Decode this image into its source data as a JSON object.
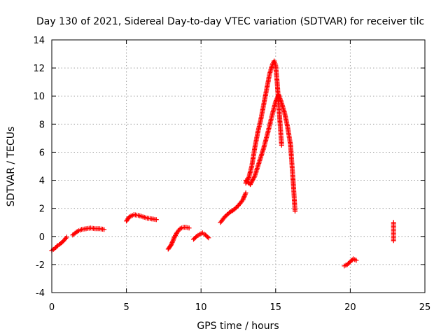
{
  "chart_data": {
    "type": "scatter",
    "title": "Day 130 of 2021, Sidereal Day-to-day VTEC variation (SDTVAR) for receiver tilc",
    "xlabel": "GPS time / hours",
    "ylabel": "SDTVAR / TECUs",
    "xlim": [
      0,
      25
    ],
    "ylim": [
      -4,
      14
    ],
    "x_ticks": [
      0,
      5,
      10,
      15,
      20,
      25
    ],
    "y_ticks": [
      -4,
      -2,
      0,
      2,
      4,
      6,
      8,
      10,
      12,
      14
    ],
    "grid": true,
    "marker": "plus",
    "color": "#ff0000",
    "segments": [
      {
        "name": "seg1",
        "x": [
          0.0,
          0.2,
          0.4,
          0.6,
          0.8,
          1.0
        ],
        "y": [
          -1.0,
          -0.85,
          -0.65,
          -0.5,
          -0.3,
          -0.05
        ]
      },
      {
        "name": "seg2",
        "x": [
          1.4,
          1.7,
          2.0,
          2.3,
          2.6,
          2.9,
          3.2,
          3.5
        ],
        "y": [
          0.1,
          0.35,
          0.5,
          0.55,
          0.6,
          0.55,
          0.55,
          0.5
        ]
      },
      {
        "name": "seg3",
        "x": [
          5.0,
          5.2,
          5.5,
          5.8,
          6.1,
          6.4,
          6.7,
          7.0
        ],
        "y": [
          1.1,
          1.4,
          1.55,
          1.5,
          1.4,
          1.3,
          1.25,
          1.2
        ]
      },
      {
        "name": "seg4",
        "x": [
          7.8,
          8.0,
          8.2,
          8.4,
          8.6,
          8.8,
          9.0,
          9.2
        ],
        "y": [
          -0.9,
          -0.6,
          -0.1,
          0.3,
          0.55,
          0.65,
          0.65,
          0.6
        ]
      },
      {
        "name": "seg5",
        "x": [
          9.5,
          9.7,
          9.9,
          10.1,
          10.3,
          10.5
        ],
        "y": [
          -0.2,
          0.0,
          0.15,
          0.25,
          0.1,
          -0.1
        ]
      },
      {
        "name": "seg6",
        "x": [
          11.3,
          11.6,
          11.9,
          12.2,
          12.5,
          12.8,
          13.0
        ],
        "y": [
          1.0,
          1.4,
          1.7,
          1.9,
          2.2,
          2.6,
          3.1
        ]
      },
      {
        "name": "seg7",
        "x": [
          13.0,
          13.2,
          13.4,
          13.6,
          13.8,
          14.0,
          14.2,
          14.4,
          14.6,
          14.8,
          14.9,
          15.0,
          15.1,
          15.2,
          15.3,
          15.4
        ],
        "y": [
          3.8,
          4.2,
          5.0,
          6.3,
          7.4,
          8.3,
          9.4,
          10.5,
          11.6,
          12.3,
          12.5,
          12.2,
          11.0,
          9.5,
          8.0,
          6.5
        ]
      },
      {
        "name": "seg8",
        "x": [
          13.0,
          13.3,
          13.6,
          13.9,
          14.2,
          14.5,
          14.8,
          15.0,
          15.2,
          15.4,
          15.6,
          15.8,
          16.0,
          16.1,
          16.2,
          16.3
        ],
        "y": [
          4.0,
          3.7,
          4.3,
          5.3,
          6.3,
          7.5,
          8.8,
          9.6,
          10.1,
          9.5,
          8.8,
          7.8,
          6.5,
          5.0,
          3.5,
          1.8
        ]
      },
      {
        "name": "seg9",
        "x": [
          19.6,
          19.8,
          20.0,
          20.2,
          20.4
        ],
        "y": [
          -2.1,
          -2.0,
          -1.8,
          -1.6,
          -1.7
        ]
      },
      {
        "name": "seg10",
        "x": [
          22.9,
          22.9,
          22.9,
          22.9,
          22.9
        ],
        "y": [
          -0.3,
          0.2,
          0.5,
          0.8,
          1.0
        ]
      }
    ]
  }
}
